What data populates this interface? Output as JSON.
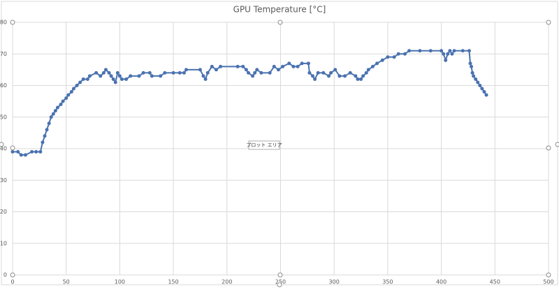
{
  "chart_data": {
    "type": "line",
    "title": "GPU Temperature [°C]",
    "x": [
      0,
      5,
      8,
      12,
      18,
      22,
      26,
      28,
      30,
      32,
      34,
      36,
      38,
      40,
      42,
      45,
      47,
      50,
      52,
      55,
      57,
      60,
      63,
      66,
      70,
      72,
      78,
      82,
      85,
      87,
      90,
      92,
      94,
      96,
      98,
      100,
      102,
      106,
      110,
      118,
      122,
      128,
      130,
      138,
      142,
      150,
      156,
      160,
      162,
      175,
      178,
      180,
      182,
      186,
      190,
      194,
      210,
      215,
      218,
      220,
      224,
      226,
      228,
      232,
      240,
      244,
      248,
      252,
      258,
      262,
      266,
      270,
      276,
      277,
      280,
      282,
      285,
      290,
      295,
      297,
      301,
      305,
      310,
      315,
      320,
      322,
      325,
      327,
      330,
      332,
      336,
      340,
      345,
      350,
      356,
      360,
      366,
      370,
      380,
      390,
      400,
      402,
      404,
      406,
      408,
      410,
      412,
      420,
      426,
      427,
      428,
      429,
      430,
      432,
      434,
      436,
      438,
      440,
      442
    ],
    "values": [
      39,
      39,
      38,
      38,
      39,
      39,
      39,
      42,
      44,
      46,
      48,
      50,
      51,
      52,
      53,
      54,
      55,
      56,
      57,
      58,
      59,
      60,
      61,
      62,
      62,
      63,
      64,
      63,
      64,
      65,
      64,
      63,
      62,
      61,
      64,
      63,
      62,
      62,
      63,
      63,
      64,
      64,
      63,
      63,
      64,
      64,
      64,
      64,
      65,
      65,
      63,
      62,
      64,
      66,
      65,
      66,
      66,
      66,
      65,
      64,
      63,
      64,
      65,
      64,
      64,
      66,
      65,
      66,
      67,
      66,
      66,
      67,
      67,
      64,
      63,
      62,
      64,
      64,
      63,
      64,
      65,
      63,
      63,
      64,
      63,
      62,
      62,
      63,
      64,
      65,
      66,
      67,
      68,
      69,
      69,
      70,
      70,
      71,
      71,
      71,
      71,
      70,
      68,
      70,
      71,
      70,
      71,
      71,
      71,
      67,
      66,
      64,
      63,
      62,
      61,
      60,
      59,
      58,
      57
    ],
    "color": "#4a72b0",
    "xlim": [
      0,
      500
    ],
    "xticks": [
      0,
      50,
      100,
      150,
      200,
      250,
      300,
      350,
      400,
      450,
      500
    ],
    "ylim": [
      0,
      80
    ],
    "yticks": [
      0,
      10,
      20,
      30,
      40,
      50,
      60,
      70,
      80
    ],
    "grid": true,
    "tooltip": "プロット エリア"
  }
}
